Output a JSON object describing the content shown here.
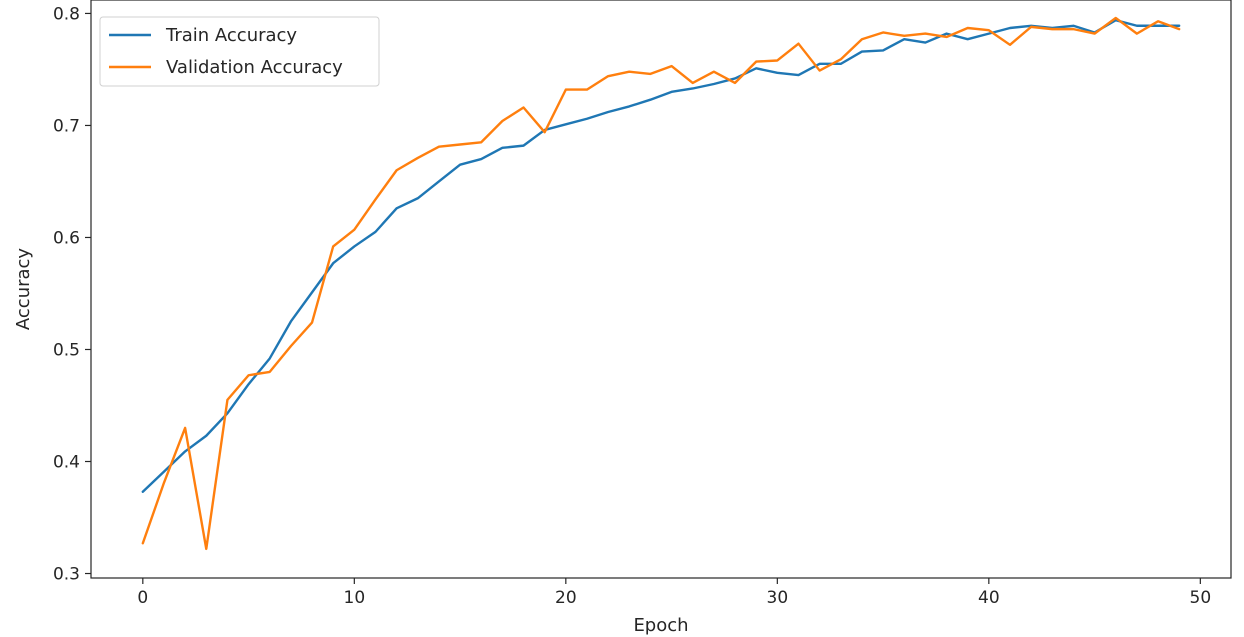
{
  "chart_data": {
    "type": "line",
    "title": "",
    "xlabel": "Epoch",
    "ylabel": "Accuracy",
    "xlim": [
      -2.45,
      51.45
    ],
    "ylim": [
      0.296,
      0.812
    ],
    "xticks": [
      0,
      10,
      20,
      30,
      40,
      50
    ],
    "yticks": [
      0.3,
      0.4,
      0.5,
      0.6,
      0.7,
      0.8
    ],
    "xtick_labels": [
      "0",
      "10",
      "20",
      "30",
      "40",
      "50"
    ],
    "ytick_labels": [
      "0.3",
      "0.4",
      "0.5",
      "0.6",
      "0.7",
      "0.8"
    ],
    "grid": false,
    "legend": "upper-left",
    "x": [
      0,
      1,
      2,
      3,
      4,
      5,
      6,
      7,
      8,
      9,
      10,
      11,
      12,
      13,
      14,
      15,
      16,
      17,
      18,
      19,
      20,
      21,
      22,
      23,
      24,
      25,
      26,
      27,
      28,
      29,
      30,
      31,
      32,
      33,
      34,
      35,
      36,
      37,
      38,
      39,
      40,
      41,
      42,
      43,
      44,
      45,
      46,
      47,
      48,
      49
    ],
    "series": [
      {
        "name": "Train Accuracy",
        "color": "#1f77b4",
        "values": [
          0.373,
          0.391,
          0.409,
          0.423,
          0.443,
          0.469,
          0.492,
          0.525,
          0.551,
          0.577,
          0.592,
          0.605,
          0.626,
          0.635,
          0.65,
          0.665,
          0.67,
          0.68,
          0.682,
          0.696,
          0.701,
          0.706,
          0.712,
          0.717,
          0.723,
          0.73,
          0.733,
          0.737,
          0.742,
          0.751,
          0.747,
          0.745,
          0.755,
          0.755,
          0.766,
          0.767,
          0.777,
          0.774,
          0.782,
          0.777,
          0.782,
          0.787,
          0.789,
          0.787,
          0.789,
          0.783,
          0.794,
          0.789,
          0.789,
          0.789
        ]
      },
      {
        "name": "Validation Accuracy",
        "color": "#ff7f0e",
        "values": [
          0.327,
          0.381,
          0.43,
          0.322,
          0.455,
          0.477,
          0.48,
          0.503,
          0.524,
          0.592,
          0.607,
          0.634,
          0.66,
          0.671,
          0.681,
          0.683,
          0.685,
          0.704,
          0.716,
          0.694,
          0.732,
          0.732,
          0.744,
          0.748,
          0.746,
          0.753,
          0.738,
          0.748,
          0.738,
          0.757,
          0.758,
          0.773,
          0.749,
          0.759,
          0.777,
          0.783,
          0.78,
          0.782,
          0.779,
          0.787,
          0.785,
          0.772,
          0.788,
          0.786,
          0.786,
          0.782,
          0.796,
          0.782,
          0.793,
          0.786
        ]
      }
    ]
  }
}
